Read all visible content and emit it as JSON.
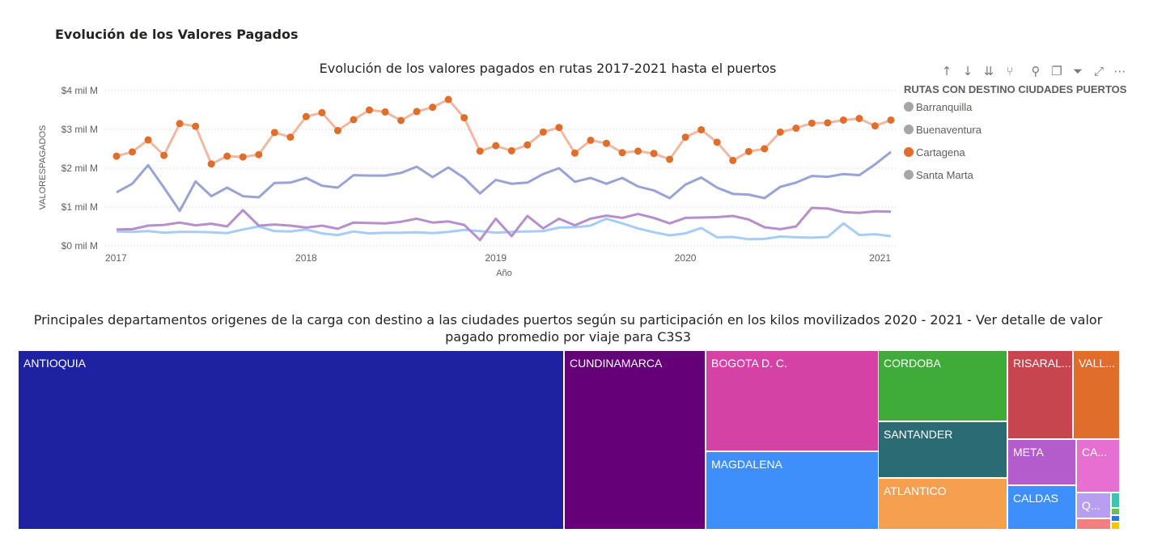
{
  "page_title": "Evolución de los Valores Pagados",
  "line_chart_title": "Evolución de los valores pagados en rutas 2017-2021 hasta el puertos",
  "treemap_title": "Principales departamentos origenes de la carga con destino a las ciudades puertos según su participación en los kilos movilizados 2020 - 2021 - Ver detalle de valor pagado promedio por viaje para C3S3",
  "toolbar_icons": [
    "arrow-up-icon",
    "arrow-down-icon",
    "double-arrow-down-icon",
    "fork-down-icon",
    "pin-icon",
    "copy-icon",
    "filter-icon",
    "focus-mode-icon",
    "more-options-icon"
  ],
  "legend": {
    "title": "RUTAS CON DESTINO  CIUDADES PUERTOS",
    "items": [
      {
        "label": "Barranquilla",
        "color": "#a6a6a6"
      },
      {
        "label": "Buenaventura",
        "color": "#a6a6a6"
      },
      {
        "label": "Cartagena",
        "color": "#e06d2a"
      },
      {
        "label": "Santa Marta",
        "color": "#a6a6a6"
      }
    ]
  },
  "chart_data": [
    {
      "type": "line",
      "title": "Evolución de los valores pagados en rutas 2017-2021 hasta el puertos",
      "xlabel": "Año",
      "ylabel": "VALORESPAGADOS",
      "x_ticks": [
        "2017",
        "2018",
        "2019",
        "2020",
        "2021"
      ],
      "y_ticks": [
        "$0 mil M",
        "$1 mil M",
        "$2 mil M",
        "$3 mil M",
        "$4 mil M"
      ],
      "ylim": [
        0,
        4
      ],
      "y_unit": "mil M",
      "x_start": "2017-01",
      "x_end": "2021-02",
      "grid": true,
      "legend_position": "right",
      "series": [
        {
          "name": "Barranquilla",
          "color": "#9aa3d6",
          "values": [
            1.38,
            1.6,
            2.08,
            1.5,
            0.9,
            1.66,
            1.28,
            1.5,
            1.28,
            1.25,
            1.62,
            1.63,
            1.75,
            1.55,
            1.5,
            1.82,
            1.81,
            1.81,
            1.88,
            2.04,
            1.77,
            2.02,
            1.75,
            1.35,
            1.7,
            1.6,
            1.63,
            1.85,
            2.0,
            1.65,
            1.75,
            1.6,
            1.75,
            1.53,
            1.43,
            1.23,
            1.58,
            1.76,
            1.5,
            1.34,
            1.32,
            1.23,
            1.52,
            1.63,
            1.8,
            1.78,
            1.85,
            1.82,
            2.1,
            2.42
          ]
        },
        {
          "name": "Buenaventura",
          "color": "#b68fcc",
          "values": [
            0.42,
            0.43,
            0.52,
            0.54,
            0.6,
            0.53,
            0.57,
            0.5,
            0.92,
            0.52,
            0.55,
            0.52,
            0.47,
            0.52,
            0.44,
            0.6,
            0.59,
            0.58,
            0.62,
            0.7,
            0.6,
            0.63,
            0.54,
            0.15,
            0.7,
            0.25,
            0.77,
            0.45,
            0.7,
            0.53,
            0.7,
            0.78,
            0.72,
            0.82,
            0.72,
            0.58,
            0.72,
            0.73,
            0.74,
            0.77,
            0.68,
            0.48,
            0.43,
            0.5,
            0.98,
            0.96,
            0.87,
            0.85,
            0.89,
            0.88
          ]
        },
        {
          "name": "Cartagena",
          "color": "#e06d2a",
          "line_color": "#f0b9a0",
          "markers": true,
          "values": [
            2.31,
            2.42,
            2.73,
            2.33,
            3.15,
            3.08,
            2.11,
            2.31,
            2.29,
            2.35,
            2.92,
            2.8,
            3.33,
            3.43,
            2.97,
            3.25,
            3.5,
            3.45,
            3.23,
            3.46,
            3.57,
            3.77,
            3.3,
            2.44,
            2.58,
            2.45,
            2.6,
            2.93,
            3.05,
            2.39,
            2.72,
            2.64,
            2.4,
            2.44,
            2.38,
            2.23,
            2.8,
            2.99,
            2.67,
            2.2,
            2.43,
            2.5,
            2.93,
            3.03,
            3.16,
            3.17,
            3.24,
            3.28,
            3.09,
            3.24
          ]
        },
        {
          "name": "Santa Marta",
          "color": "#a6cdf7",
          "values": [
            0.37,
            0.36,
            0.38,
            0.34,
            0.36,
            0.36,
            0.35,
            0.33,
            0.42,
            0.5,
            0.38,
            0.37,
            0.42,
            0.32,
            0.28,
            0.37,
            0.32,
            0.34,
            0.34,
            0.35,
            0.33,
            0.36,
            0.41,
            0.38,
            0.34,
            0.36,
            0.37,
            0.38,
            0.47,
            0.48,
            0.52,
            0.7,
            0.58,
            0.45,
            0.35,
            0.27,
            0.32,
            0.46,
            0.22,
            0.23,
            0.17,
            0.18,
            0.24,
            0.22,
            0.21,
            0.23,
            0.58,
            0.28,
            0.3,
            0.25
          ]
        }
      ]
    },
    {
      "type": "treemap",
      "title": "Principales departamentos origenes de la carga con destino a las ciudades puertos según su participación en los kilos movilizados 2020 - 2021 - Ver detalle de valor pagado promedio por viaje para C3S3",
      "items": [
        {
          "label": "ANTIOQUIA",
          "color": "#1e22a0"
        },
        {
          "label": "CUNDINAMARCA",
          "color": "#660078"
        },
        {
          "label": "BOGOTA D. C.",
          "color": "#d542a6"
        },
        {
          "label": "MAGDALENA",
          "color": "#3e8ffb"
        },
        {
          "label": "CORDOBA",
          "color": "#3fab39"
        },
        {
          "label": "SANTANDER",
          "color": "#2b6c74"
        },
        {
          "label": "ATLANTICO",
          "color": "#f4a04e"
        },
        {
          "label": "RISARAL...",
          "color": "#c7454e"
        },
        {
          "label": "VALL...",
          "color": "#e06d2a"
        },
        {
          "label": "META",
          "color": "#b55ccc"
        },
        {
          "label": "CA...",
          "color": "#e86fd2"
        },
        {
          "label": "CALDAS",
          "color": "#3e8ffb"
        },
        {
          "label": "Q...",
          "color": "#b89ef0"
        },
        {
          "label": "",
          "color": "#3cc6b0"
        },
        {
          "label": "",
          "color": "#6bc04f"
        },
        {
          "label": "",
          "color": "#2f72d9"
        },
        {
          "label": "",
          "color": "#f28080"
        },
        {
          "label": "",
          "color": "#f0c419"
        }
      ]
    }
  ]
}
